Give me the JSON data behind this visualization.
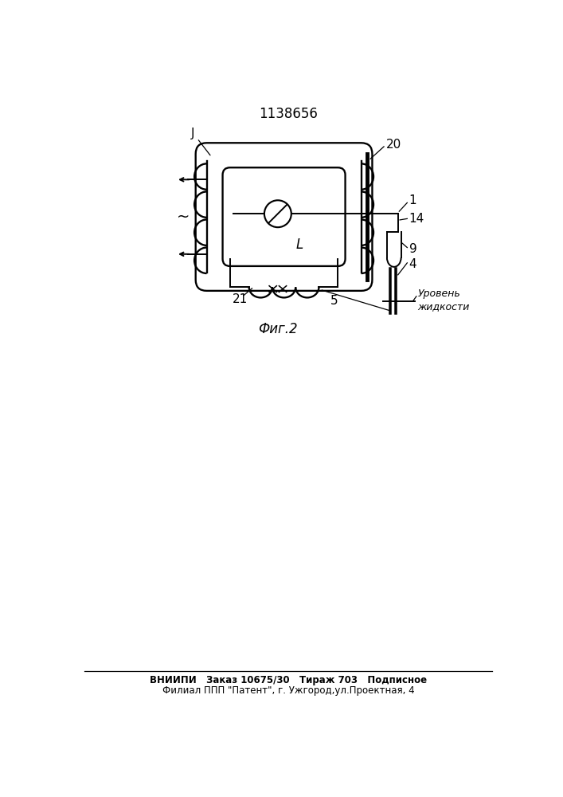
{
  "title": "1138656",
  "fig_label": "Фиг.2",
  "background_color": "#ffffff",
  "line_color": "#000000",
  "footer_line1": "ВНИИПИ   Заказ 10675/30   Тираж 703   Подписное",
  "footer_line2": "Филиал ППП \"Патент\", г. Ужгород,ул.Проектная, 4"
}
